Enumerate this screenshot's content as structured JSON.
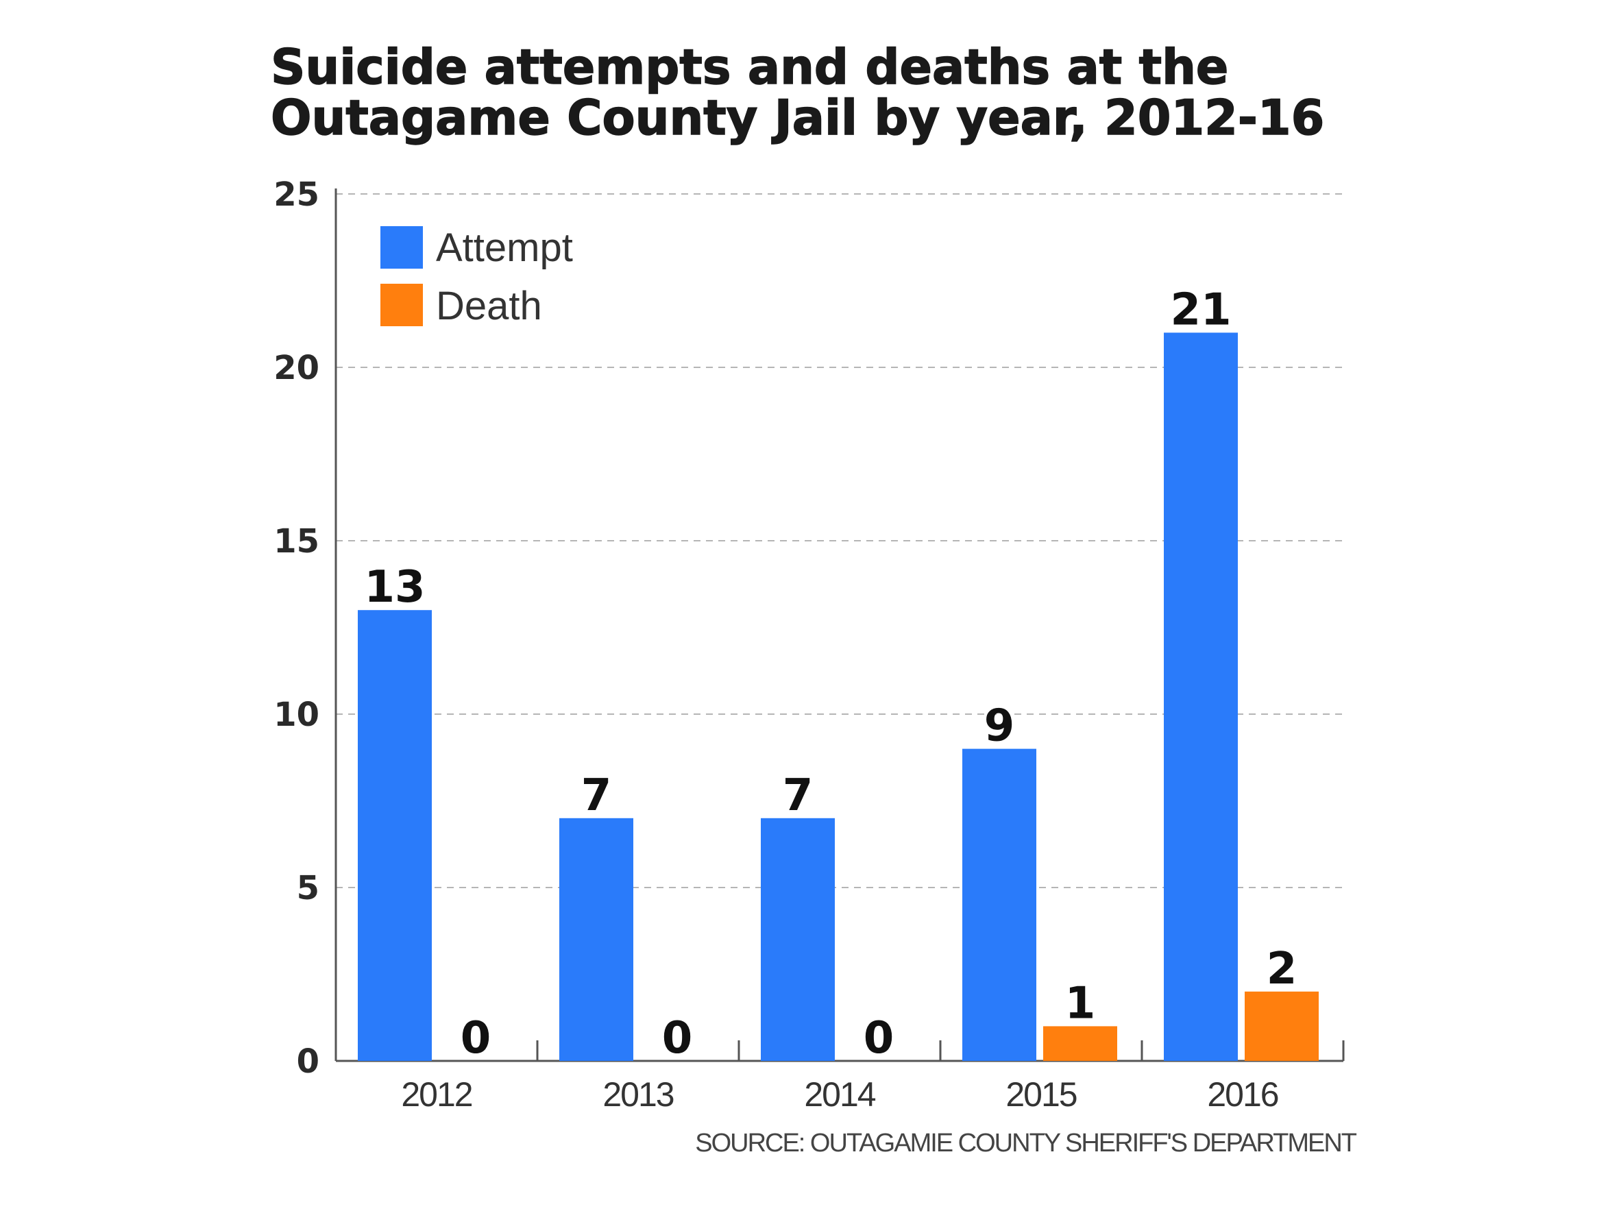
{
  "chart_data": {
    "type": "bar",
    "title_lines": [
      "Suicide attempts and deaths at the",
      "Outagame County Jail by year, 2012-16"
    ],
    "categories": [
      "2012",
      "2013",
      "2014",
      "2015",
      "2016"
    ],
    "series": [
      {
        "name": "Attempt",
        "color": "#2a7bfa",
        "values": [
          13,
          7,
          7,
          9,
          21
        ]
      },
      {
        "name": "Death",
        "color": "#ff7f0e",
        "values": [
          0,
          0,
          0,
          1,
          2
        ]
      }
    ],
    "ylim": [
      0,
      25
    ],
    "yticks": [
      "0",
      "5",
      "10",
      "15",
      "20",
      "25"
    ],
    "grid": true,
    "legend_position": "top-left",
    "source": "SOURCE: OUTAGAMIE COUNTY SHERIFF'S DEPARTMENT"
  }
}
